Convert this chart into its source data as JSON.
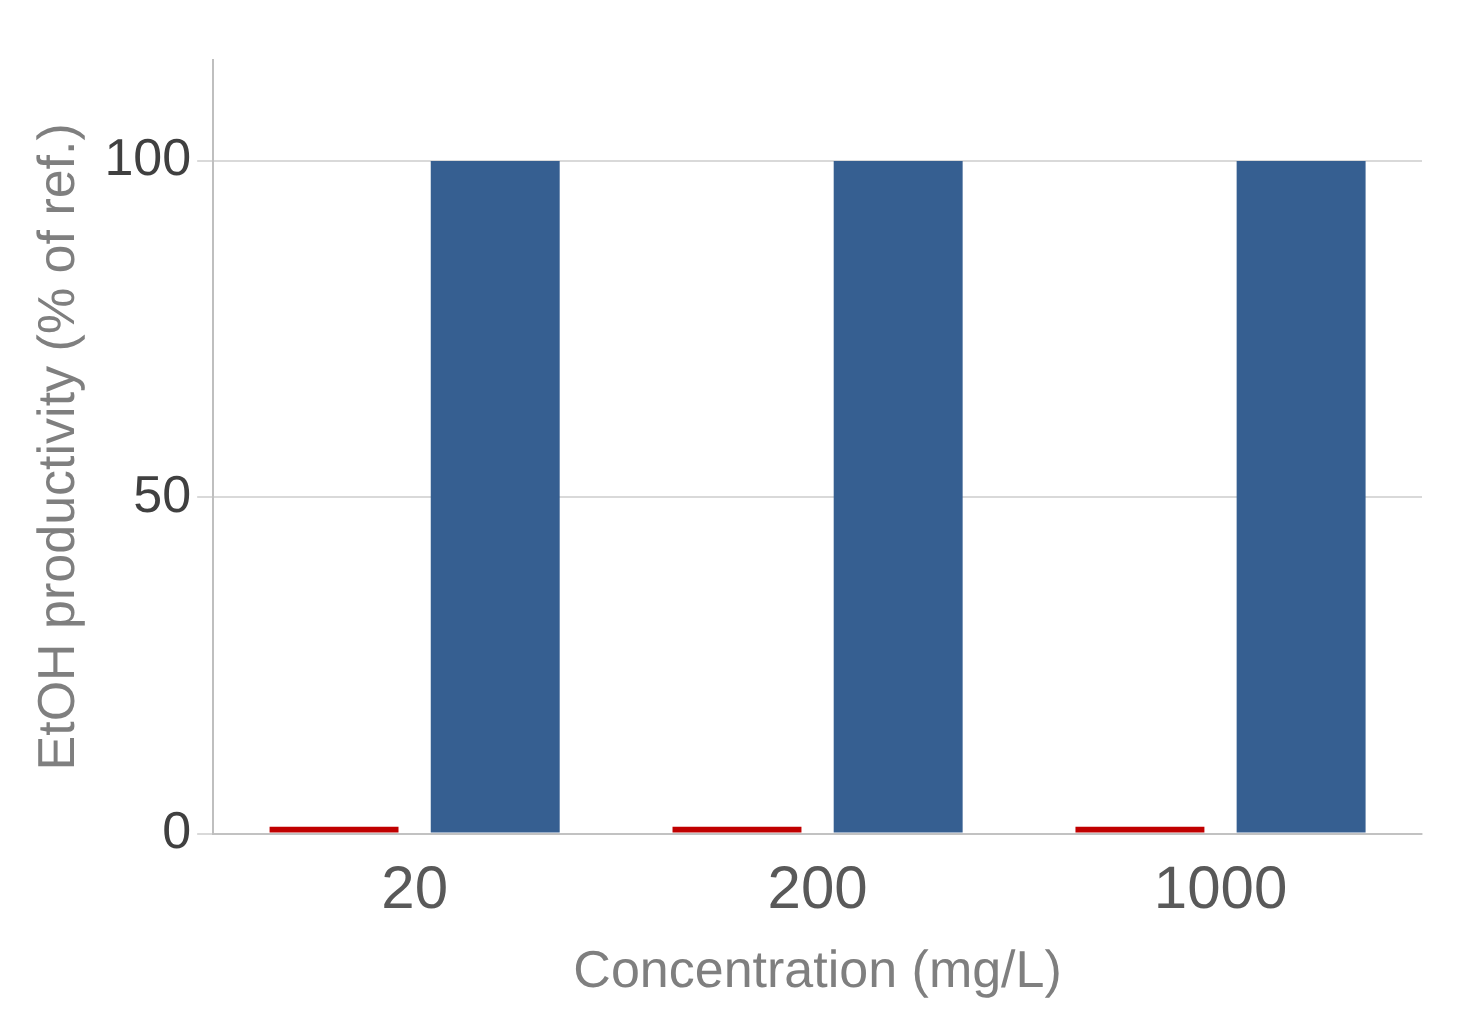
{
  "chart_data": {
    "type": "bar",
    "xlabel": "Concentration (mg/L)",
    "ylabel": "EtOH productivity (% of ref.)",
    "categories": [
      "20",
      "200",
      "1000"
    ],
    "series": [
      {
        "color": "#c00000",
        "values": [
          1,
          1,
          1
        ]
      },
      {
        "color": "#365f91",
        "values": [
          100,
          100,
          100
        ]
      }
    ],
    "ylim": [
      0,
      115
    ],
    "yticks": [
      0,
      50,
      100
    ],
    "grid": "y"
  }
}
